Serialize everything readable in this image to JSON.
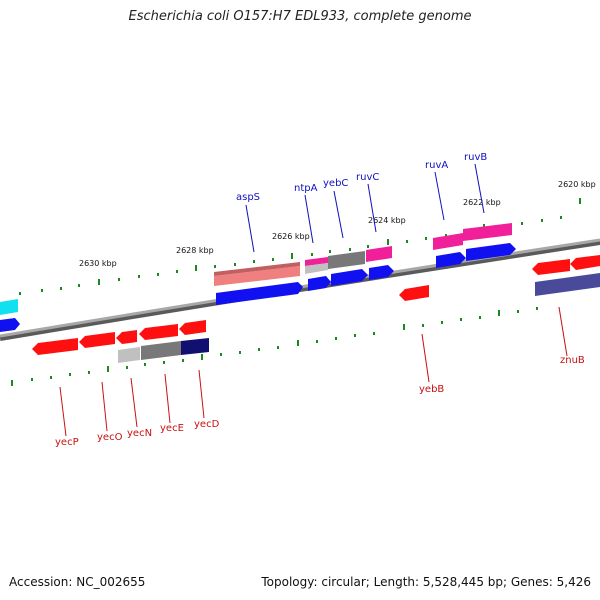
{
  "title": "Escherichia coli O157:H7 EDL933, complete genome",
  "footer": {
    "accession": "Accession: NC_002655",
    "summary": "Topology: circular; Length: 5,528,445 bp; Genes: 5,426"
  },
  "colors": {
    "backbone": "#8a8a8a",
    "tick": "#1a8a1a",
    "forward_label": "#1010c0",
    "reverse_label": "#c81010",
    "red": "#ff1010",
    "blue": "#1010f0",
    "magenta": "#f0209a",
    "gray": "#787878",
    "lightgray": "#c0c0c0",
    "navy": "#101070",
    "salmon": "#f08080",
    "cyan": "#10e0f0",
    "slate": "#4a4a9a"
  },
  "scale_labels": [
    "2620 kbp",
    "2622 kbp",
    "2624 kbp",
    "2626 kbp",
    "2628 kbp",
    "2630 kbp"
  ],
  "forward_genes": [
    "aspS",
    "ntpA",
    "yebC",
    "ruvC",
    "ruvA",
    "ruvB"
  ],
  "reverse_genes": [
    "yecP",
    "yecO",
    "yecN",
    "yecE",
    "yecD",
    "yebB",
    "znuB"
  ]
}
